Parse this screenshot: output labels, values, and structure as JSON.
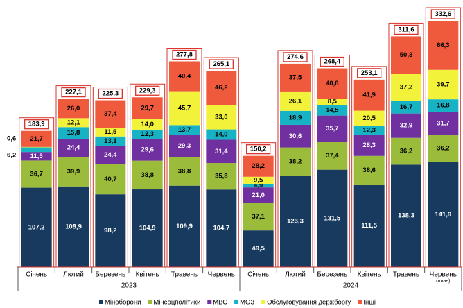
{
  "chart_data": {
    "type": "stacked_bar",
    "categories": [
      "Січень",
      "Лютий",
      "Березень",
      "Квітень",
      "Травень",
      "Червень",
      "Січень",
      "Лютий",
      "Березень",
      "Квітень",
      "Травень",
      "Червень"
    ],
    "category_notes": [
      null,
      null,
      null,
      null,
      null,
      null,
      null,
      null,
      null,
      null,
      null,
      "(план)"
    ],
    "groups": [
      {
        "name": "2023",
        "count": 6
      },
      {
        "name": "2024",
        "count": 6
      }
    ],
    "series": [
      {
        "name": "Міноборони",
        "color": "#173a5e",
        "values": [
          107.2,
          108.9,
          98.2,
          104.9,
          109.9,
          104.7,
          49.5,
          123.3,
          131.5,
          111.5,
          138.3,
          141.9
        ],
        "value_labels": [
          "107,2",
          "108,9",
          "98,2",
          "104,9",
          "109,9",
          "104,7",
          "49,5",
          "123,3",
          "131,5",
          "111,5",
          "138,3",
          "141,9"
        ]
      },
      {
        "name": "Мінсоцполітики",
        "color": "#9bbb3b",
        "values": [
          36.7,
          39.9,
          40.7,
          38.8,
          38.8,
          35.8,
          37.1,
          38.2,
          37.4,
          38.6,
          36.2,
          36.2
        ],
        "value_labels": [
          "36,7",
          "39,9",
          "40,7",
          "38,8",
          "38,8",
          "35,8",
          "37,1",
          "38,2",
          "37,4",
          "38,6",
          "36,2",
          "36,2"
        ]
      },
      {
        "name": "МВС",
        "color": "#7030a0",
        "values": [
          11.5,
          24.4,
          24.4,
          29.6,
          29.3,
          31.4,
          21.0,
          30.6,
          35.7,
          28.3,
          32.9,
          31.7
        ],
        "value_labels": [
          "11,5",
          "24,4",
          "24,4",
          "29,6",
          "29,3",
          "31,4",
          "21,0",
          "30,6",
          "35,7",
          "28,3",
          "32,9",
          "31,7"
        ]
      },
      {
        "name": "МОЗ",
        "color": "#17b3c4",
        "values": [
          6.2,
          15.8,
          13.1,
          12.3,
          13.7,
          14.0,
          4.9,
          18.9,
          14.5,
          12.3,
          16.7,
          16.8
        ],
        "value_labels": [
          "6,2",
          "15,8",
          "13,1",
          "12,3",
          "13,7",
          "14,0",
          "4,9",
          "18,9",
          "14,5",
          "12,3",
          "16,7",
          "16,8"
        ]
      },
      {
        "name": "Обслуговування держборгу",
        "color": "#f2f23a",
        "values": [
          0.6,
          12.1,
          11.5,
          14.0,
          45.7,
          33.0,
          9.5,
          26.1,
          8.5,
          20.5,
          37.2,
          39.7
        ],
        "value_labels": [
          "0,6",
          "12,1",
          "11,5",
          "14,0",
          "45,7",
          "33,0",
          "9,5",
          "26,1",
          "8,5",
          "20,5",
          "37,2",
          "39,7"
        ]
      },
      {
        "name": "Інші",
        "color": "#f05a3c",
        "values": [
          21.7,
          26.0,
          37.4,
          29.7,
          40.4,
          46.2,
          28.2,
          37.5,
          40.8,
          41.9,
          50.3,
          66.3
        ],
        "value_labels": [
          "21,7",
          "26,0",
          "37,4",
          "29,7",
          "40,4",
          "46,2",
          "28,2",
          "37,5",
          "40,8",
          "41,9",
          "50,3",
          "66,3"
        ]
      }
    ],
    "totals": [
      183.9,
      227.1,
      225.3,
      229.3,
      277.8,
      265.1,
      150.2,
      274.6,
      268.4,
      253.1,
      311.6,
      332.6
    ],
    "total_labels": [
      "183,9",
      "227,1",
      "225,3",
      "229,3",
      "277,8",
      "265,1",
      "150,2",
      "274,6",
      "268,4",
      "253,1",
      "311,6",
      "332,6"
    ]
  }
}
